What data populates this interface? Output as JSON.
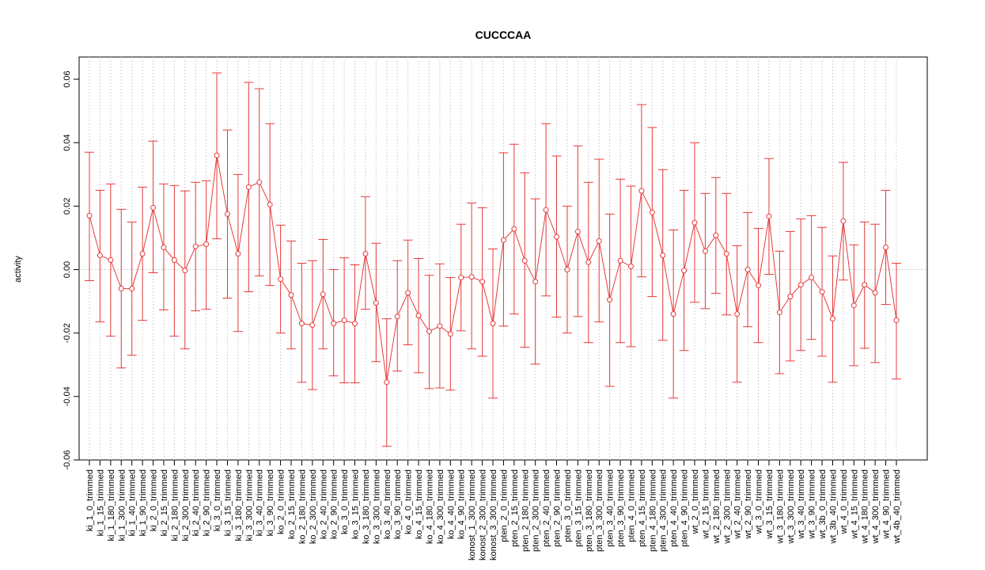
{
  "chart_data": {
    "type": "errorbar-line",
    "title": "CUCCCAA",
    "y_label": "activity",
    "color": "#e83a3a",
    "grid": true,
    "reference_line": 0,
    "ylim": [
      -0.06,
      0.067
    ],
    "yticks": [
      {
        "value": -0.06,
        "label": "-0.06"
      },
      {
        "value": -0.04,
        "label": "-0.04"
      },
      {
        "value": -0.02,
        "label": "-0.02"
      },
      {
        "value": 0,
        "label": "0.00"
      },
      {
        "value": 0.02,
        "label": "0.02"
      },
      {
        "value": 0.04,
        "label": "0.04"
      },
      {
        "value": 0.06,
        "label": "0.06"
      }
    ],
    "categories": [
      "ki_1_0_trimmed",
      "ki_1_15_trimmed",
      "ki_1_180_trimmed",
      "ki_1_300_trimmed",
      "ki_1_40_trimmed",
      "ki_1_90_trimmed",
      "ki_2_0_trimmed",
      "ki_2_15_trimmed",
      "ki_2_180_trimmed",
      "ki_2_300_trimmed",
      "ki_2_40_trimmed",
      "ki_2_90_trimmed",
      "ki_3_0_trimmed",
      "ki_3_15_trimmed",
      "ki_3_180_trimmed",
      "ki_3_300_trimmed",
      "ki_3_40_trimmed",
      "ki_3_90_trimmed",
      "ko_2_0_trimmed",
      "ko_2_15_trimmed",
      "ko_2_180_trimmed",
      "ko_2_300_trimmed",
      "ko_2_40_trimmed",
      "ko_2_90_trimmed",
      "ko_3_0_trimmed",
      "ko_3_15_trimmed",
      "ko_3_180_trimmed",
      "ko_3_300_trimmed",
      "ko_3_40_trimmed",
      "ko_3_90_trimmed",
      "ko_4_0_trimmed",
      "ko_4_15_trimmed",
      "ko_4_180_trimmed",
      "ko_4_300_trimmed",
      "ko_4_40_trimmed",
      "ko_4_90_trimmed",
      "konost_1_300_trimmed",
      "konost_2_300_trimmed",
      "konost_3_300_trimmed",
      "pten_2_0_trimmed",
      "pten_2_15_trimmed",
      "pten_2_180_trimmed",
      "pten_2_300_trimmed",
      "pten_2_40_trimmed",
      "pten_2_90_trimmed",
      "pten_3_0_trimmed",
      "pten_3_15_trimmed",
      "pten_3_180_trimmed",
      "pten_3_300_trimmed",
      "pten_3_40_trimmed",
      "pten_3_90_trimmed",
      "pten_4_0_trimmed",
      "pten_4_15_trimmed",
      "pten_4_180_trimmed",
      "pten_4_300_trimmed",
      "pten_4_40_trimmed",
      "pten_4_90_trimmed",
      "wt_2_0_trimmed",
      "wt_2_15_trimmed",
      "wt_2_180_trimmed",
      "wt_2_300_trimmed",
      "wt_2_40_trimmed",
      "wt_2_90_trimmed",
      "wt_3_0_trimmed",
      "wt_3_15_trimmed",
      "wt_3_180_trimmed",
      "wt_3_300_trimmed",
      "wt_3_40_trimmed",
      "wt_3_90_trimmed",
      "wt_3b_0_trimmed",
      "wt_3b_40_trimmed",
      "wt_4_0_trimmed",
      "wt_4_15_trimmed",
      "wt_4_180_trimmed",
      "wt_4_300_trimmed",
      "wt_4_90_trimmed",
      "wt_4b_40_trimmed"
    ],
    "values": [
      0.017,
      0.0045,
      0.003,
      -0.006,
      -0.006,
      0.005,
      0.0195,
      0.007,
      0.003,
      -0.0003,
      0.0073,
      0.008,
      0.036,
      0.0175,
      0.005,
      0.026,
      0.0275,
      0.0205,
      -0.003,
      -0.008,
      -0.017,
      -0.0175,
      -0.0078,
      -0.017,
      -0.016,
      -0.017,
      0.005,
      -0.0105,
      -0.0355,
      -0.0148,
      -0.0073,
      -0.0145,
      -0.0195,
      -0.0178,
      -0.0203,
      -0.0025,
      -0.0023,
      -0.0038,
      -0.017,
      0.0093,
      0.0128,
      0.0028,
      -0.0038,
      0.0188,
      0.0103,
      0,
      0.012,
      0.0023,
      0.009,
      -0.0095,
      0.0028,
      0.001,
      0.0248,
      0.018,
      0.0045,
      -0.014,
      -0.0003,
      0.0148,
      0.0058,
      0.0108,
      0.005,
      -0.014,
      0,
      -0.005,
      0.0168,
      -0.0135,
      -0.0085,
      -0.0048,
      -0.0025,
      -0.007,
      -0.0155,
      0.0153,
      -0.0113,
      -0.0048,
      -0.0073,
      0.007,
      -0.016
    ],
    "upper": [
      0.037,
      0.025,
      0.027,
      0.019,
      0.015,
      0.026,
      0.0405,
      0.027,
      0.0265,
      0.0248,
      0.0275,
      0.028,
      0.062,
      0.044,
      0.03,
      0.059,
      0.057,
      0.046,
      0.014,
      0.009,
      0.002,
      0.0028,
      0.0095,
      0,
      0.0037,
      0.0015,
      0.023,
      0.0083,
      -0.0155,
      0.0028,
      0.0093,
      0.0035,
      -0.0018,
      0.0018,
      -0.0025,
      0.0143,
      0.021,
      0.0195,
      0.0065,
      0.0368,
      0.0395,
      0.0305,
      0.0223,
      0.046,
      0.0358,
      0.02,
      0.039,
      0.0275,
      0.0348,
      0.0175,
      0.0285,
      0.0263,
      0.052,
      0.0448,
      0.0315,
      0.0125,
      0.025,
      0.04,
      0.024,
      0.029,
      0.024,
      0.0075,
      0.018,
      0.013,
      0.035,
      0.0058,
      0.012,
      0.016,
      0.017,
      0.0133,
      0.0043,
      0.0338,
      0.0078,
      0.015,
      0.0143,
      0.025,
      0.002
    ],
    "lower": [
      -0.0035,
      -0.0165,
      -0.021,
      -0.031,
      -0.027,
      -0.016,
      -0.001,
      -0.0127,
      -0.021,
      -0.025,
      -0.013,
      -0.0125,
      0.0097,
      -0.009,
      -0.0195,
      -0.007,
      -0.002,
      -0.005,
      -0.02,
      -0.025,
      -0.0355,
      -0.0378,
      -0.025,
      -0.0335,
      -0.0357,
      -0.0357,
      -0.0125,
      -0.029,
      -0.0557,
      -0.032,
      -0.0237,
      -0.0325,
      -0.0375,
      -0.0373,
      -0.038,
      -0.0193,
      -0.025,
      -0.0273,
      -0.0405,
      -0.0178,
      -0.014,
      -0.0245,
      -0.0298,
      -0.0083,
      -0.015,
      -0.02,
      -0.0148,
      -0.023,
      -0.0165,
      -0.0368,
      -0.023,
      -0.0243,
      -0.0023,
      -0.0085,
      -0.0223,
      -0.0405,
      -0.0255,
      -0.0103,
      -0.0123,
      -0.0075,
      -0.0143,
      -0.0355,
      -0.018,
      -0.023,
      -0.0015,
      -0.0328,
      -0.0288,
      -0.0255,
      -0.022,
      -0.0273,
      -0.0355,
      -0.0033,
      -0.0303,
      -0.0248,
      -0.0293,
      -0.011,
      -0.0345
    ]
  }
}
